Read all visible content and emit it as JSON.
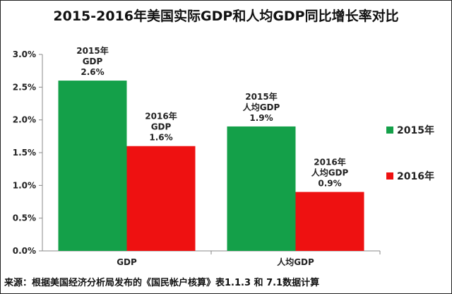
{
  "chart_data": {
    "type": "bar",
    "title": "2015-2016年美国实际GDP和人均GDP同比增长率对比",
    "categories": [
      "GDP",
      "人均GDP"
    ],
    "series": [
      {
        "name": "2015年",
        "color": "#14a049",
        "values": [
          2.6,
          1.9
        ]
      },
      {
        "name": "2016年",
        "color": "#ee1111",
        "values": [
          1.6,
          0.9
        ]
      }
    ],
    "data_labels": [
      [
        [
          "2015年",
          "GDP",
          "2.6%"
        ],
        [
          "2015年",
          "人均GDP",
          "1.9%"
        ]
      ],
      [
        [
          "2016年",
          "GDP",
          "1.6%"
        ],
        [
          "2016年",
          "人均GDP",
          "0.9%"
        ]
      ]
    ],
    "y_ticks": [
      0.0,
      0.5,
      1.0,
      1.5,
      2.0,
      2.5,
      3.0
    ],
    "y_tick_labels": [
      "0.0%",
      "0.5%",
      "1.0%",
      "1.5%",
      "2.0%",
      "2.5%",
      "3.0%"
    ],
    "ylim": [
      0,
      3.0
    ],
    "grid": false,
    "legend_position": "right",
    "xlabel": "",
    "ylabel": ""
  },
  "source": "来源：根据美国经济分析局发布的《国民帐户核算》表1.1.3 和 7.1数据计算"
}
